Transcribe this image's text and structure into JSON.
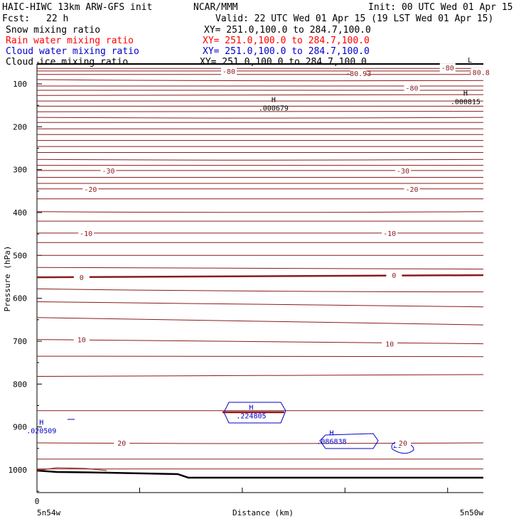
{
  "header": {
    "title_left": "HAIC-HIWC 13km ARW-GFS init",
    "org": "NCAR/MMM",
    "init": "Init: 00 UTC Wed 01 Apr 15",
    "fcst_label": "Fcst:",
    "fcst_value": "22 h",
    "valid": "Valid: 22 UTC Wed 01 Apr 15 (19 LST Wed 01 Apr 15)"
  },
  "legend": [
    {
      "name": "Snow mixing ratio",
      "xy": "XY= 251.0,100.0 to 284.7,100.0",
      "color": "#000000"
    },
    {
      "name": "Rain water mixing ratio",
      "xy": "XY= 251.0,100.0 to 284.7,100.0",
      "color": "#ff0000"
    },
    {
      "name": "Cloud water mixing ratio",
      "xy": "XY= 251.0,100.0 to 284.7,100.0",
      "color": "#0000cc"
    },
    {
      "name": "Cloud ice mixing ratio",
      "xy": "XY= 251.0,100.0 to 284.7,100.0",
      "color": "#000000"
    }
  ],
  "chart_data": {
    "type": "line",
    "ylabel": "Pressure (hPa)",
    "xlabel": "Distance (km)",
    "yticks": [
      100,
      200,
      300,
      400,
      500,
      600,
      700,
      800,
      900,
      1000
    ],
    "ylim": [
      1050,
      50
    ],
    "x_origin_label": "0",
    "x_left_label": "5n54w",
    "x_right_label": "5n50w",
    "grid": false,
    "temperature_labels": [
      {
        "text": "-80",
        "x": 0.43,
        "p": 70
      },
      {
        "text": "-80",
        "x": 0.92,
        "p": 62
      },
      {
        "text": "-80.8",
        "x": 0.99,
        "p": 73
      },
      {
        "text": "-80.93",
        "x": 0.72,
        "p": 75
      },
      {
        "text": "-80",
        "x": 0.84,
        "p": 109
      },
      {
        "text": "-30",
        "x": 0.16,
        "p": 302
      },
      {
        "text": "-30",
        "x": 0.82,
        "p": 302
      },
      {
        "text": "-20",
        "x": 0.12,
        "p": 345
      },
      {
        "text": "-20",
        "x": 0.84,
        "p": 345
      },
      {
        "text": "-10",
        "x": 0.11,
        "p": 448
      },
      {
        "text": "-10",
        "x": 0.79,
        "p": 448
      },
      {
        "text": "0",
        "x": 0.1,
        "p": 551
      },
      {
        "text": "0",
        "x": 0.8,
        "p": 546
      },
      {
        "text": "10",
        "x": 0.1,
        "p": 696
      },
      {
        "text": "10",
        "x": 0.79,
        "p": 706
      },
      {
        "text": "20",
        "x": 0.19,
        "p": 937
      },
      {
        "text": "20",
        "x": 0.82,
        "p": 937
      }
    ],
    "extrema": [
      {
        "kind": "H",
        "value": ".000679",
        "x": 0.53,
        "p": 152,
        "color": "#000000"
      },
      {
        "kind": "H",
        "value": ".000815",
        "x": 0.96,
        "p": 137,
        "color": "#000000"
      },
      {
        "kind": "L",
        "value": "",
        "x": 0.97,
        "p": 60,
        "color": "#000000"
      },
      {
        "kind": "H",
        "value": ".224805",
        "x": 0.48,
        "p": 870,
        "color": "#0000cc"
      },
      {
        "kind": "H",
        "value": ".020509",
        "x": 0.01,
        "p": 905,
        "color": "#0000cc"
      },
      {
        "kind": "H",
        "value": ".086838",
        "x": 0.66,
        "p": 930,
        "color": "#0000cc"
      }
    ],
    "cloud_water_label": "20"
  }
}
